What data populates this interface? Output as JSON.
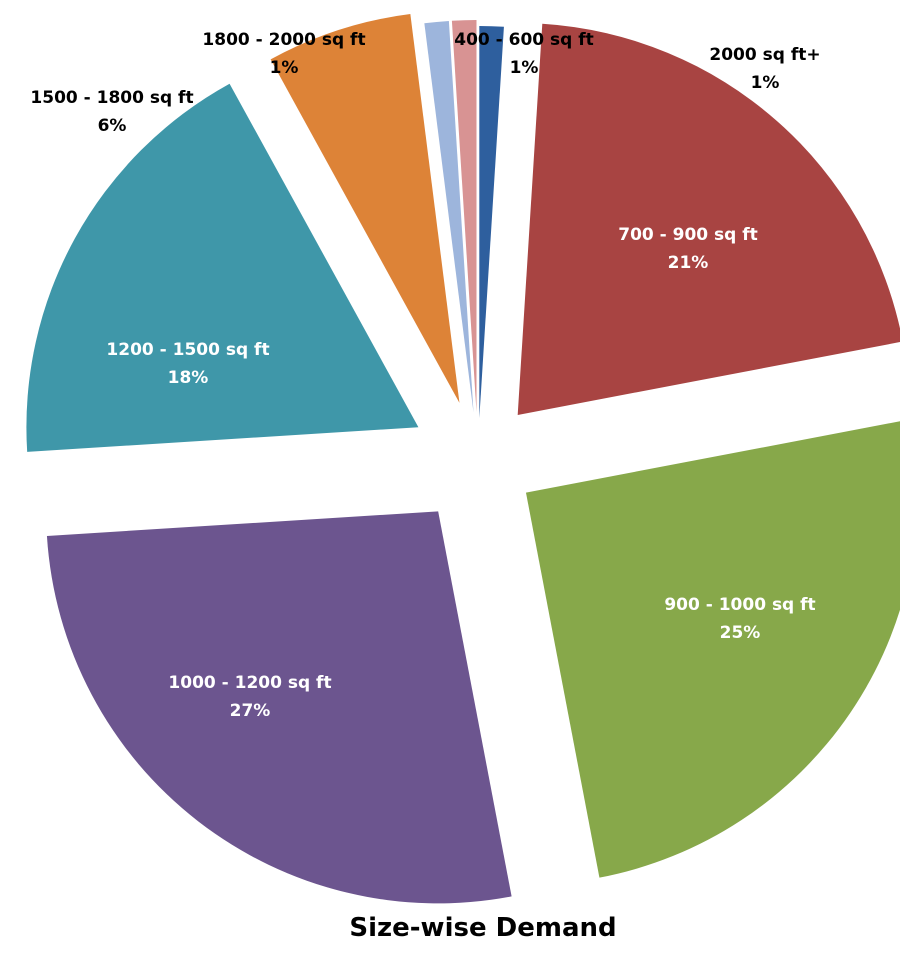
{
  "chart_data": {
    "type": "pie",
    "title": "Size-wise Demand",
    "exploded": true,
    "slices": [
      {
        "label": "2000 sq ft+",
        "pct_label": "1%",
        "value": 1,
        "color": "#2e5f9e"
      },
      {
        "label": "700 - 900 sq ft",
        "pct_label": "21%",
        "value": 21,
        "color": "#a84442"
      },
      {
        "label": "900 - 1000 sq ft",
        "pct_label": "25%",
        "value": 25,
        "color": "#87a84a"
      },
      {
        "label": "1000 - 1200 sq ft",
        "pct_label": "27%",
        "value": 27,
        "color": "#6c558f"
      },
      {
        "label": "1200 - 1500 sq ft",
        "pct_label": "18%",
        "value": 18,
        "color": "#3f97a9"
      },
      {
        "label": "1500 - 1800 sq ft",
        "pct_label": "6%",
        "value": 6,
        "color": "#dd8337"
      },
      {
        "label": "1800 - 2000 sq ft",
        "pct_label": "1%",
        "value": 1,
        "color": "#9db5dc"
      },
      {
        "label": "400 - 600 sq ft",
        "pct_label": "1%",
        "value": 1,
        "color": "#d89393"
      }
    ]
  }
}
